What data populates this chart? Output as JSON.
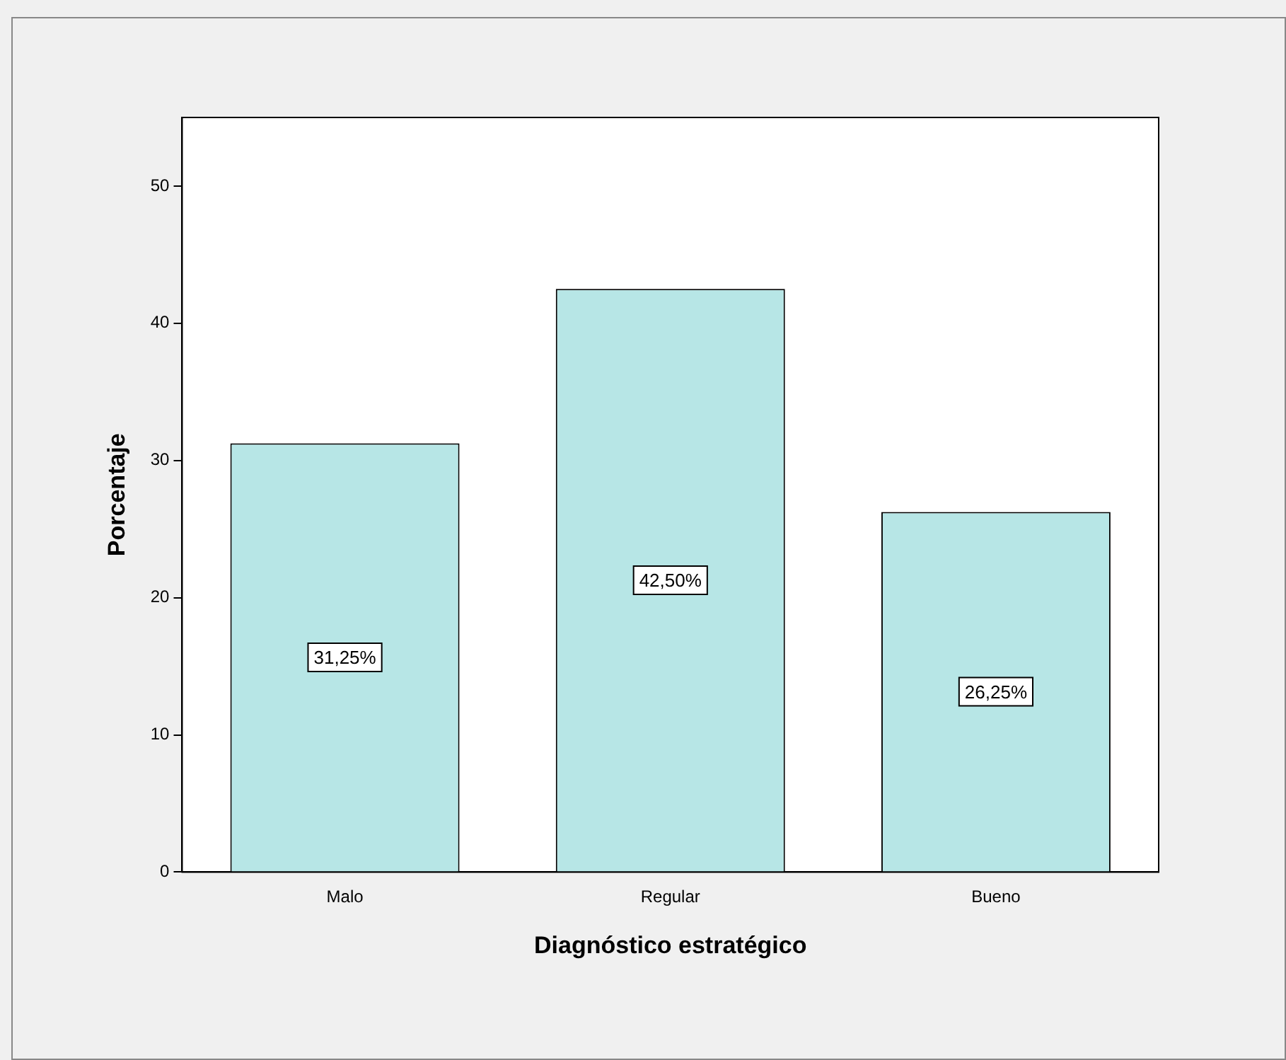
{
  "chart_data": {
    "type": "bar",
    "xlabel": "Diagnóstico estratégico",
    "ylabel": "Porcentaje",
    "categories": [
      "Malo",
      "Regular",
      "Bueno"
    ],
    "values": [
      31.25,
      42.5,
      26.25
    ],
    "value_labels": [
      "31,25%",
      "42,50%",
      "26,25%"
    ],
    "color": "#b7e6e6",
    "ylim": [
      0,
      55
    ],
    "yticks": [
      0,
      10,
      20,
      30,
      40,
      50
    ],
    "grid": false,
    "legend": false
  }
}
